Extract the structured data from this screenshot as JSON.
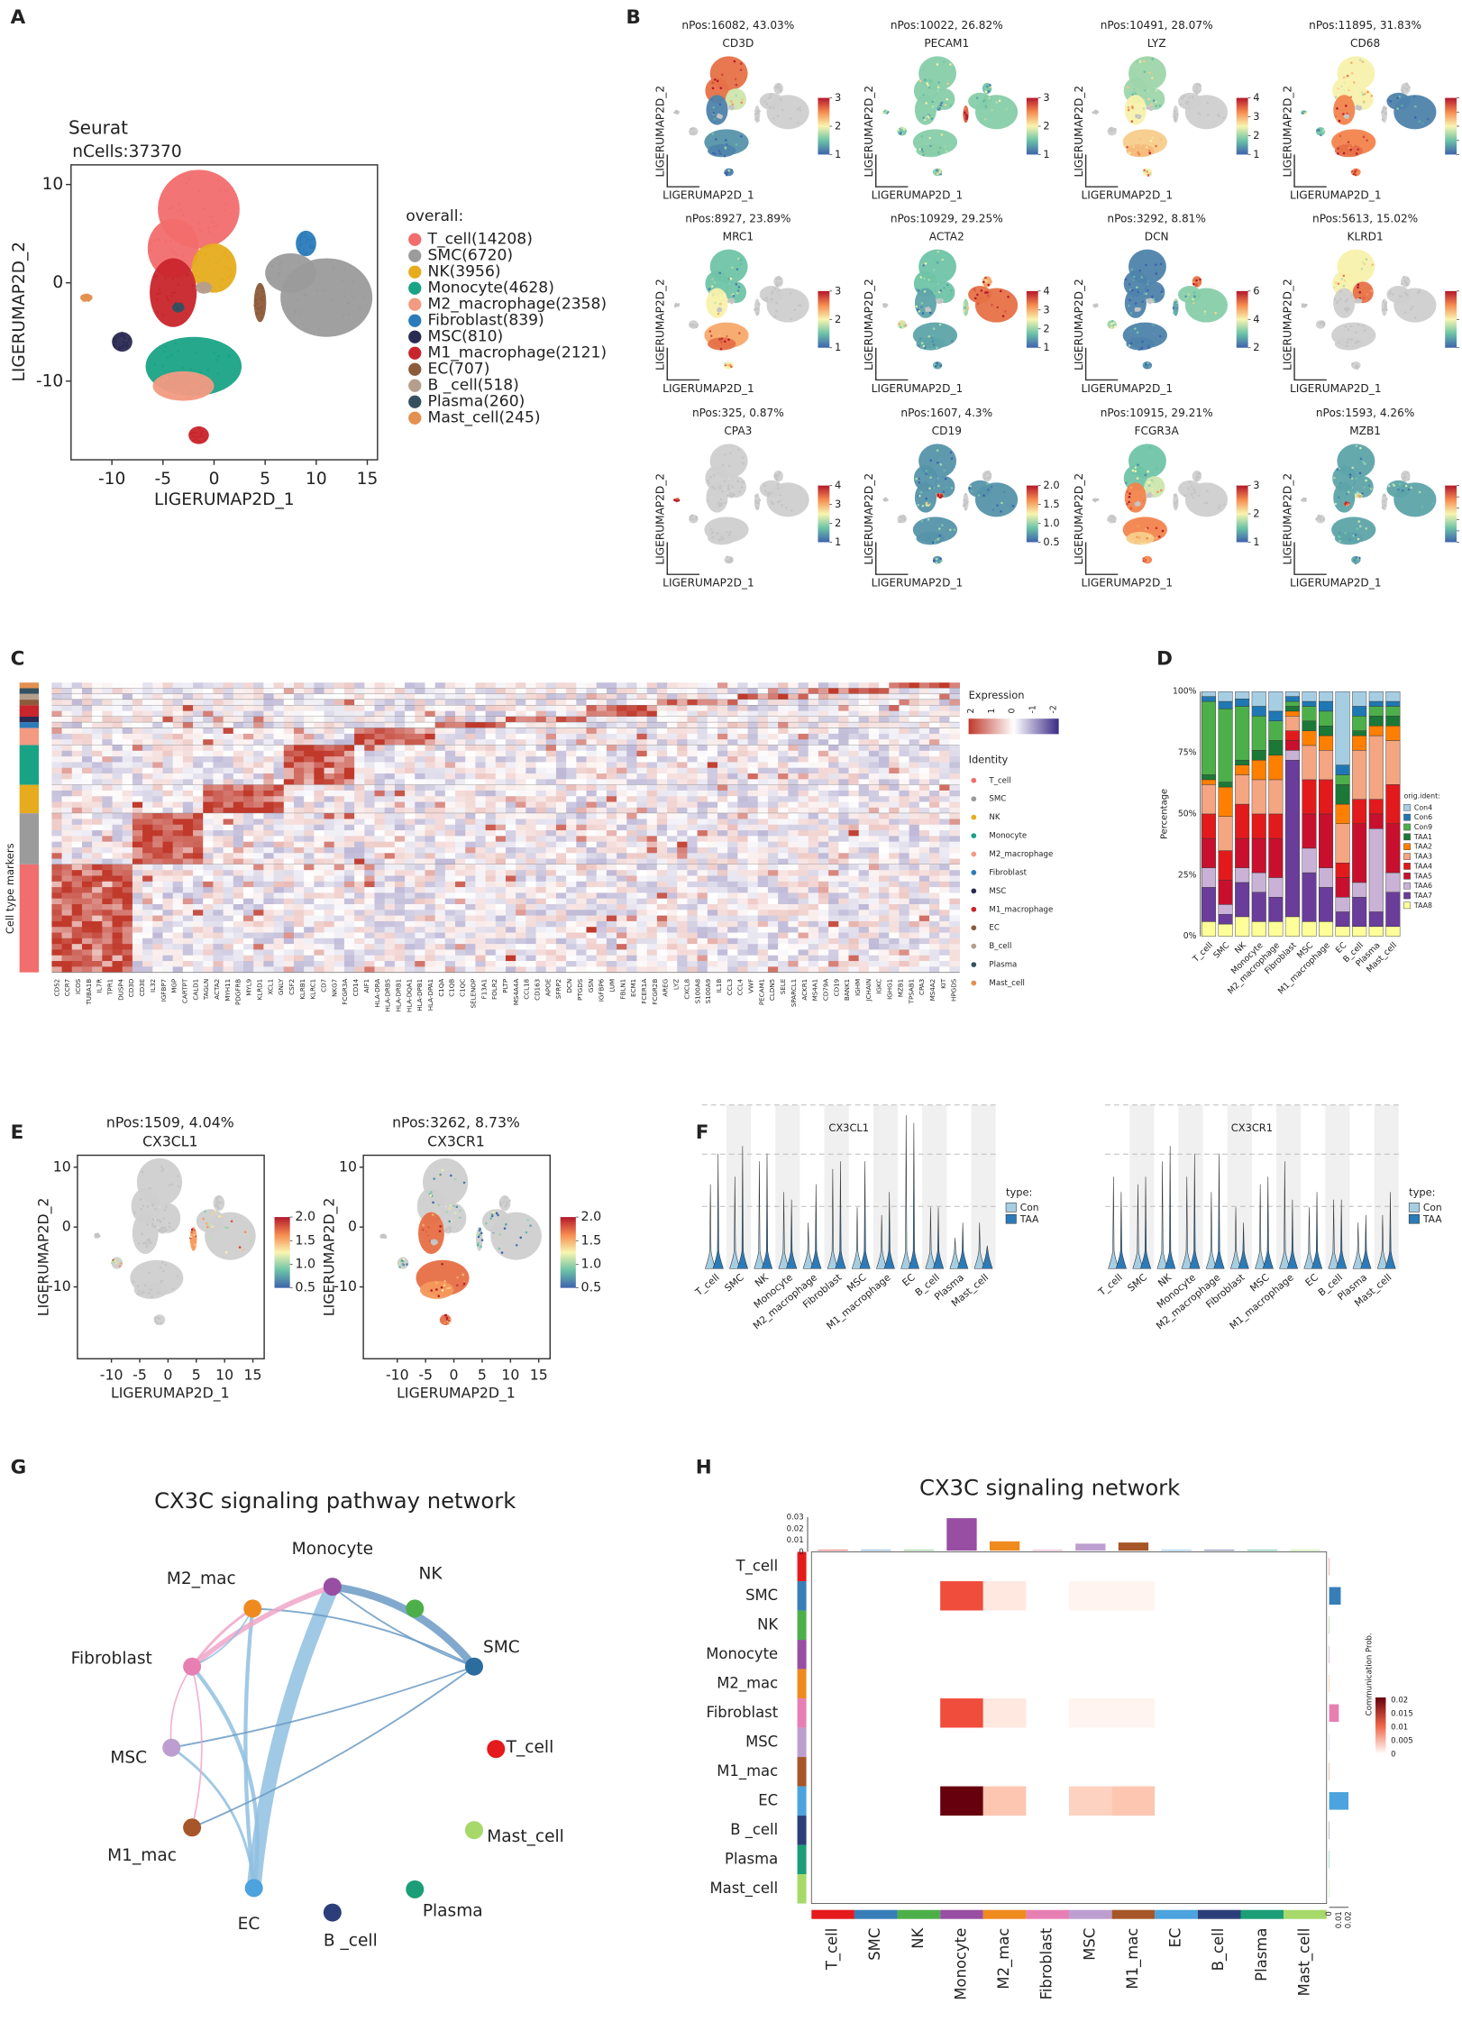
{
  "panel_labels": [
    "A",
    "B",
    "C",
    "D",
    "E",
    "F",
    "G",
    "H"
  ],
  "a": {
    "title": "Seurat",
    "subtitle": "nCells:37370",
    "legend_title": "overall:",
    "legend": [
      {
        "label": "T_cell(14208)",
        "color": "#f26d6d"
      },
      {
        "label": "SMC(6720)",
        "color": "#9b9b9b"
      },
      {
        "label": "NK(3956)",
        "color": "#e6ac1e"
      },
      {
        "label": "Monocyte(4628)",
        "color": "#19a385"
      },
      {
        "label": "M2_macrophage(2358)",
        "color": "#f29a82"
      },
      {
        "label": "Fibroblast(839)",
        "color": "#2b7bba"
      },
      {
        "label": "MSC(810)",
        "color": "#2a2a52"
      },
      {
        "label": "M1_macrophage(2121)",
        "color": "#c9252c"
      },
      {
        "label": "EC(707)",
        "color": "#8c5b3b"
      },
      {
        "label": "B _cell(518)",
        "color": "#b59e8c"
      },
      {
        "label": "Plasma(260)",
        "color": "#34505f"
      },
      {
        "label": "Mast_cell(245)",
        "color": "#e39050"
      }
    ],
    "x_label": "LIGERUMAP2D_1",
    "y_label": "LIGERUMAP2D_2",
    "xlim": [
      -14,
      16
    ],
    "ylim": [
      -18,
      12
    ],
    "xticks": [
      "-10",
      "-5",
      "0",
      "5",
      "10",
      "15"
    ],
    "yticks": [
      "10",
      "0",
      "-10"
    ]
  },
  "b": {
    "x_label": "LIGERUMAP2D_1",
    "y_label": "LIGERUMAP2D_2",
    "plots": [
      {
        "header": "nPos:16082, 43.03%",
        "gene": "CD3D",
        "colorbar": [
          "3",
          "2",
          "1"
        ]
      },
      {
        "header": "nPos:10022, 26.82%",
        "gene": "PECAM1",
        "colorbar": [
          "3",
          "2",
          "1"
        ]
      },
      {
        "header": "nPos:10491, 28.07%",
        "gene": "LYZ",
        "colorbar": [
          "4",
          "3",
          "2",
          "1"
        ]
      },
      {
        "header": "nPos:11895, 31.83%",
        "gene": "CD68",
        "colorbar": [
          "2.5",
          "2.0",
          "1.5",
          "1.0",
          "0.5"
        ]
      },
      {
        "header": "nPos:8927, 23.89%",
        "gene": "MRC1",
        "colorbar": [
          "3",
          "2",
          "1"
        ]
      },
      {
        "header": "nPos:10929, 29.25%",
        "gene": "ACTA2",
        "colorbar": [
          "4",
          "3",
          "2",
          "1"
        ]
      },
      {
        "header": "nPos:3292, 8.81%",
        "gene": "DCN",
        "colorbar": [
          "6",
          "4",
          "2"
        ]
      },
      {
        "header": "nPos:5613, 15.02%",
        "gene": "KLRD1",
        "colorbar": [
          "3",
          "2",
          "1"
        ]
      },
      {
        "header": "nPos:325, 0.87%",
        "gene": "CPA3",
        "colorbar": [
          "4",
          "3",
          "2",
          "1"
        ]
      },
      {
        "header": "nPos:1607, 4.3%",
        "gene": "CD19",
        "colorbar": [
          "2.0",
          "1.5",
          "1.0",
          "0.5"
        ]
      },
      {
        "header": "nPos:10915, 29.21%",
        "gene": "FCGR3A",
        "colorbar": [
          "3",
          "2",
          "1"
        ]
      },
      {
        "header": "nPos:1593, 4.26%",
        "gene": "MZB1",
        "colorbar": [
          "3.0",
          "2.5",
          "2.0",
          "1.5",
          "1.0",
          "0.5"
        ]
      }
    ]
  },
  "c": {
    "y_label": "Cell type markers",
    "legend_title": "Expression",
    "scale": [
      "2",
      "1",
      "0",
      "-1",
      "-2"
    ],
    "identity_title": "Identity",
    "identity": [
      "T_cell",
      "SMC",
      "NK",
      "Monocyte",
      "M2_macrophage",
      "Fibroblast",
      "MSC",
      "M1_macrophage",
      "EC",
      "B_cell",
      "Plasma",
      "Mast_cell"
    ],
    "genes": [
      "CD52",
      "CCR7",
      "ICOS",
      "TUBA1B",
      "IL7R",
      "TPR1",
      "DUSP4",
      "CD3D",
      "CD3E",
      "IL32",
      "IGFBP7",
      "MGP",
      "CARTPT",
      "CALD1",
      "TAGLN",
      "ACTA2",
      "MYH11",
      "PDGFRB",
      "MYL9",
      "KLRD1",
      "XCL1",
      "GNLY",
      "CSF2",
      "KLRB1",
      "KLRC1",
      "CD7",
      "NKG7",
      "FCGR3A",
      "CD14",
      "AIF1",
      "HLA-DRA",
      "HLA-DRB5",
      "HLA-DRB1",
      "HLA-DQA1",
      "HLA-DPB1",
      "HLA-DPA1",
      "C1QA",
      "C1QB",
      "C1QC",
      "SELENOP",
      "F13A1",
      "FOLR2",
      "PLTP",
      "MS4A4A",
      "CCL18",
      "CD163",
      "APOE",
      "SFRP2",
      "DCN",
      "PTGDS",
      "GSN",
      "IGFBP6",
      "LUM",
      "FBLN1",
      "ECM1",
      "FCER1A",
      "FCGR2B",
      "AREG",
      "LYZ",
      "CXCL8",
      "S100A8",
      "S100A9",
      "IL1B",
      "CCL3",
      "CCL4",
      "VWF",
      "PECAM1",
      "CLDN5",
      "SELE",
      "SPARCL1",
      "ACKR1",
      "MS4A1",
      "CD79A",
      "CD19",
      "BANK1",
      "IGHM",
      "JCHAIN",
      "IGKC",
      "IGHG1",
      "MZB1",
      "TPSAB1",
      "CPA3",
      "MS4A2",
      "KIT",
      "HPGDS"
    ]
  },
  "d": {
    "y_label": "Percentage",
    "yticks": [
      "0%",
      "25%",
      "50%",
      "75%",
      "100%"
    ],
    "legend_title": "orig.ident:",
    "categories": [
      "T_cell",
      "SMC",
      "NK",
      "Monocyte",
      "M2_macrophage",
      "Fibroblast",
      "MSC",
      "M1_macrophage",
      "EC",
      "B_cell",
      "Plasma",
      "Mast_cell"
    ],
    "series": [
      {
        "name": "Con4",
        "color": "#a6cee3",
        "values": [
          2,
          4,
          3,
          6,
          8,
          2,
          4,
          4,
          30,
          6,
          4,
          4
        ]
      },
      {
        "name": "Con6",
        "color": "#1f78b4",
        "values": [
          2,
          3,
          3,
          4,
          4,
          2,
          2,
          4,
          4,
          4,
          2,
          2
        ]
      },
      {
        "name": "Con9",
        "color": "#4daf4a",
        "values": [
          30,
          30,
          22,
          14,
          8,
          2,
          6,
          6,
          4,
          6,
          4,
          4
        ]
      },
      {
        "name": "TAA1",
        "color": "#1b7837",
        "values": [
          2,
          2,
          2,
          4,
          6,
          2,
          4,
          4,
          8,
          2,
          4,
          4
        ]
      },
      {
        "name": "TAA2",
        "color": "#ff7f00",
        "values": [
          2,
          12,
          4,
          8,
          10,
          2,
          6,
          6,
          8,
          6,
          4,
          6
        ]
      },
      {
        "name": "TAA3",
        "color": "#f4a582",
        "values": [
          12,
          14,
          12,
          14,
          14,
          6,
          14,
          12,
          16,
          20,
          26,
          18
        ]
      },
      {
        "name": "TAA4",
        "color": "#e31a1c",
        "values": [
          10,
          12,
          14,
          10,
          10,
          4,
          14,
          14,
          6,
          10,
          6,
          16
        ]
      },
      {
        "name": "TAA5",
        "color": "#c8102e",
        "values": [
          12,
          10,
          12,
          14,
          16,
          4,
          14,
          22,
          8,
          24,
          6,
          20
        ]
      },
      {
        "name": "TAA6",
        "color": "#cab2d6",
        "values": [
          8,
          4,
          6,
          8,
          8,
          4,
          10,
          8,
          6,
          6,
          34,
          8
        ]
      },
      {
        "name": "TAA7",
        "color": "#6a3d9a",
        "values": [
          14,
          4,
          14,
          12,
          10,
          64,
          20,
          14,
          6,
          12,
          6,
          14
        ]
      },
      {
        "name": "TAA8",
        "color": "#ffff99",
        "values": [
          6,
          5,
          8,
          6,
          6,
          8,
          6,
          6,
          4,
          4,
          4,
          4
        ]
      }
    ]
  },
  "e": {
    "x_label": "LIGERUMAP2D_1",
    "y_label": "LIGERUMAP2D_2",
    "xlim": [
      -16,
      17
    ],
    "ylim": [
      -22,
      12
    ],
    "xticks": [
      "-10",
      "-5",
      "0",
      "5",
      "10",
      "15"
    ],
    "yticks": [
      "10",
      "0",
      "-10"
    ],
    "plots": [
      {
        "header": "nPos:1509, 4.04%",
        "gene": "CX3CL1",
        "colorbar": [
          "2.0",
          "1.5",
          "1.0",
          "0.5"
        ]
      },
      {
        "header": "nPos:3262, 8.73%",
        "gene": "CX3CR1",
        "colorbar": [
          "2.0",
          "1.5",
          "1.0",
          "0.5"
        ]
      }
    ]
  },
  "f": {
    "legend_title": "type:",
    "categories": [
      "T_cell",
      "SMC",
      "NK",
      "Monocyte",
      "M2_macrophage",
      "Fibroblast",
      "MSC",
      "M1_macrophage",
      "EC",
      "B_cell",
      "Plasma",
      "Mast_cell"
    ],
    "plots": [
      {
        "title": "CX3CL1",
        "series": [
          {
            "name": "Con",
            "color": "#a6cee3",
            "values": [
              0.55,
              0.6,
              0.7,
              0.5,
              0.3,
              0.65,
              0.4,
              0.35,
              1.0,
              0.4,
              0.2,
              0.3
            ]
          },
          {
            "name": "TAA",
            "color": "#2b7bba",
            "values": [
              0.75,
              0.8,
              0.75,
              0.45,
              0.55,
              0.7,
              0.7,
              0.5,
              0.95,
              0.4,
              0.3,
              0.15
            ]
          }
        ]
      },
      {
        "title": "CX3CR1",
        "series": [
          {
            "name": "Con",
            "color": "#a6cee3",
            "values": [
              0.6,
              0.55,
              0.7,
              0.6,
              0.5,
              0.4,
              0.55,
              0.7,
              0.4,
              0.45,
              0.3,
              0.35
            ]
          },
          {
            "name": "TAA",
            "color": "#2b7bba",
            "values": [
              0.5,
              0.6,
              0.8,
              0.75,
              0.75,
              0.3,
              0.6,
              0.45,
              0.5,
              0.45,
              0.35,
              0.5
            ]
          }
        ]
      }
    ]
  },
  "g": {
    "title": "CX3C signaling pathway network",
    "nodes": [
      {
        "label": "Monocyte",
        "color": "#984ea3"
      },
      {
        "label": "M2_mac",
        "color": "#ef8a1f"
      },
      {
        "label": "NK",
        "color": "#4daf4a"
      },
      {
        "label": "SMC",
        "color": "#2c6da0"
      },
      {
        "label": "Fibroblast",
        "color": "#e77fb3"
      },
      {
        "label": "MSC",
        "color": "#bc9fd0"
      },
      {
        "label": "T_cell",
        "color": "#e41a1c"
      },
      {
        "label": "M1_mac",
        "color": "#a65628"
      },
      {
        "label": "Mast_cell",
        "color": "#a6d96a"
      },
      {
        "label": "EC",
        "color": "#4ca3dd"
      },
      {
        "label": "Plasma",
        "color": "#1b9e77"
      },
      {
        "label": "B _cell",
        "color": "#2c3e7a"
      }
    ]
  },
  "h": {
    "title": "CX3C signaling network",
    "rows": [
      "T_cell",
      "SMC",
      "NK",
      "Monocyte",
      "M2_mac",
      "Fibroblast",
      "MSC",
      "M1_mac",
      "EC",
      "B _cell",
      "Plasma",
      "Mast_cell"
    ],
    "columns": [
      "T_cell",
      "SMC",
      "NK",
      "Monocyte",
      "M2_mac",
      "Fibroblast",
      "MSC",
      "M1_mac",
      "EC",
      "B_cell",
      "Plasma",
      "Mast_cell"
    ],
    "colors": [
      "#e41a1c",
      "#377eb8",
      "#4daf4a",
      "#984ea3",
      "#ef8a1f",
      "#e77fb3",
      "#bc9fd0",
      "#a65628",
      "#4ca3dd",
      "#2c3e7a",
      "#1b9e77",
      "#a6d96a"
    ],
    "top_ticks": [
      "0.03",
      "0.02",
      "0.01",
      "0"
    ],
    "right_ticks": [
      "0",
      "0.01",
      "0.02"
    ],
    "legend_title": "Communication Prob.",
    "legend_ticks": [
      "0.02",
      "0.015",
      "0.01",
      "0.005",
      "0"
    ],
    "matrix": [
      [
        0,
        0,
        0,
        0,
        0,
        0,
        0,
        0,
        0,
        0,
        0,
        0
      ],
      [
        0,
        0,
        0,
        0.012,
        0.002,
        0,
        0.001,
        0.001,
        0,
        0,
        0,
        0
      ],
      [
        0,
        0,
        0,
        0,
        0,
        0,
        0,
        0,
        0,
        0,
        0,
        0
      ],
      [
        0,
        0,
        0,
        0,
        0,
        0,
        0,
        0,
        0,
        0,
        0,
        0
      ],
      [
        0,
        0,
        0,
        0,
        0,
        0,
        0,
        0,
        0,
        0,
        0,
        0
      ],
      [
        0,
        0,
        0,
        0.012,
        0.002,
        0,
        0.001,
        0.001,
        0,
        0,
        0,
        0
      ],
      [
        0,
        0,
        0,
        0,
        0,
        0,
        0,
        0,
        0,
        0,
        0,
        0
      ],
      [
        0,
        0,
        0,
        0,
        0,
        0,
        0,
        0,
        0,
        0,
        0,
        0
      ],
      [
        0,
        0,
        0,
        0.02,
        0.005,
        0,
        0.004,
        0.005,
        0,
        0,
        0,
        0
      ],
      [
        0,
        0,
        0,
        0,
        0,
        0,
        0,
        0,
        0,
        0,
        0,
        0
      ],
      [
        0,
        0,
        0,
        0,
        0,
        0,
        0,
        0,
        0,
        0,
        0,
        0
      ],
      [
        0,
        0,
        0,
        0,
        0,
        0,
        0,
        0,
        0,
        0,
        0,
        0
      ]
    ],
    "column_totals": [
      0.0005,
      0.0005,
      0.0005,
      0.028,
      0.008,
      0.0005,
      0.006,
      0.007,
      0.0005,
      0.0005,
      0.0005,
      0.0005
    ],
    "row_totals": [
      0.0003,
      0.012,
      0.0003,
      0.0003,
      0.0003,
      0.01,
      0.0003,
      0.0003,
      0.02,
      0.0003,
      0.0003,
      0.0003
    ]
  }
}
